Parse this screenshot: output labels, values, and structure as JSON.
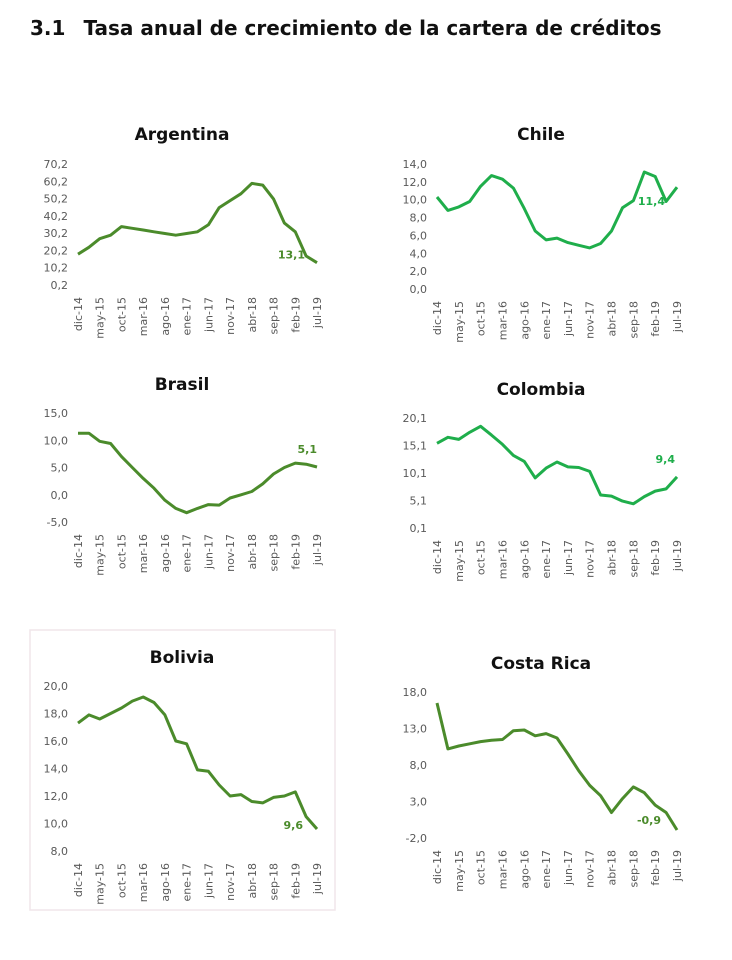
{
  "heading": {
    "number": "3.1",
    "text": "Tasa anual de crecimiento de la cartera de créditos"
  },
  "chart_data": [
    {
      "type": "line",
      "title": "Argentina",
      "color": "#4b8b2b",
      "grid": false,
      "categories": [
        "dic-14",
        null,
        "may-15",
        null,
        "oct-15",
        null,
        "mar-16",
        null,
        "ago-16",
        null,
        "ene-17",
        null,
        "jun-17",
        null,
        "nov-17",
        null,
        "abr-18",
        null,
        "sep-18",
        null,
        "feb-19",
        null,
        "jul-19"
      ],
      "values": [
        18,
        22,
        27,
        29,
        34,
        33,
        32,
        31,
        30,
        29,
        30,
        31,
        35,
        45,
        49,
        53,
        59,
        58,
        50,
        36,
        31,
        17,
        13.1
      ],
      "value_labels": [
        null,
        null,
        null,
        null,
        null,
        null,
        null,
        null,
        null,
        null,
        null,
        null,
        null,
        null,
        null,
        null,
        null,
        null,
        null,
        null,
        null,
        null,
        "13,1"
      ],
      "ylim": [
        0.2,
        70.2
      ],
      "yticks": [
        {
          "value": 0.2,
          "label": "0,2"
        },
        {
          "value": 10.2,
          "label": "10,2"
        },
        {
          "value": 20.2,
          "label": "20,2"
        },
        {
          "value": 30.2,
          "label": "30,2"
        },
        {
          "value": 40.2,
          "label": "40,2"
        },
        {
          "value": 50.2,
          "label": "50,2"
        },
        {
          "value": 60.2,
          "label": "60,2"
        },
        {
          "value": 70.2,
          "label": "70,2"
        }
      ]
    },
    {
      "type": "line",
      "title": "Chile",
      "color": "#1fae4b",
      "grid": false,
      "categories": [
        "dic-14",
        null,
        "may-15",
        null,
        "oct-15",
        null,
        "mar-16",
        null,
        "ago-16",
        null,
        "ene-17",
        null,
        "jun-17",
        null,
        "nov-17",
        null,
        "abr-18",
        null,
        "sep-18",
        null,
        "feb-19",
        null,
        "jul-19"
      ],
      "values": [
        10.3,
        8.8,
        9.2,
        9.8,
        11.5,
        12.7,
        12.3,
        11.3,
        9.0,
        6.5,
        5.5,
        5.7,
        5.2,
        4.9,
        4.6,
        5.1,
        6.5,
        9.1,
        9.9,
        13.1,
        12.6,
        9.8,
        11.4
      ],
      "value_labels": [
        null,
        null,
        null,
        null,
        null,
        null,
        null,
        null,
        null,
        null,
        null,
        null,
        null,
        null,
        null,
        null,
        null,
        null,
        null,
        null,
        null,
        null,
        "11,4"
      ],
      "ylim": [
        0,
        14
      ],
      "yticks": [
        {
          "value": 0,
          "label": "0,0"
        },
        {
          "value": 2,
          "label": "2,0"
        },
        {
          "value": 4,
          "label": "4,0"
        },
        {
          "value": 6,
          "label": "6,0"
        },
        {
          "value": 8,
          "label": "8,0"
        },
        {
          "value": 10,
          "label": "10,0"
        },
        {
          "value": 12,
          "label": "12,0"
        },
        {
          "value": 14,
          "label": "14,0"
        }
      ]
    },
    {
      "type": "line",
      "title": "Brasil",
      "color": "#4b8b2b",
      "grid": false,
      "categories": [
        "dic-14",
        null,
        "may-15",
        null,
        "oct-15",
        null,
        "mar-16",
        null,
        "ago-16",
        null,
        "ene-17",
        null,
        "jun-17",
        null,
        "nov-17",
        null,
        "abr-18",
        null,
        "sep-18",
        null,
        "feb-19",
        null,
        "jul-19"
      ],
      "values": [
        11.3,
        11.3,
        9.8,
        9.4,
        7.0,
        5.0,
        3.0,
        1.2,
        -1.0,
        -2.5,
        -3.3,
        -2.5,
        -1.8,
        -1.9,
        -0.6,
        0.0,
        0.6,
        2.0,
        3.8,
        5.0,
        5.8,
        5.6,
        5.1
      ],
      "value_labels": [
        null,
        null,
        null,
        null,
        null,
        null,
        null,
        null,
        null,
        null,
        null,
        null,
        null,
        null,
        null,
        null,
        null,
        null,
        null,
        null,
        null,
        null,
        "5,1"
      ],
      "ylim": [
        -5,
        15
      ],
      "yticks": [
        {
          "value": -5,
          "label": "-5,0"
        },
        {
          "value": 0,
          "label": "0,0"
        },
        {
          "value": 5,
          "label": "5,0"
        },
        {
          "value": 10,
          "label": "10,0"
        },
        {
          "value": 15,
          "label": "15,0"
        }
      ]
    },
    {
      "type": "line",
      "title": "Colombia",
      "color": "#1fae4b",
      "grid": false,
      "categories": [
        "dic-14",
        null,
        "may-15",
        null,
        "oct-15",
        null,
        "mar-16",
        null,
        "ago-16",
        null,
        "ene-17",
        null,
        "jun-17",
        null,
        "nov-17",
        null,
        "abr-18",
        null,
        "sep-18",
        null,
        "feb-19",
        null,
        "jul-19"
      ],
      "values": [
        15.5,
        16.6,
        16.2,
        17.5,
        18.6,
        17.0,
        15.3,
        13.3,
        12.2,
        9.2,
        11.0,
        12.1,
        11.2,
        11.1,
        10.4,
        6.1,
        5.9,
        5.0,
        4.5,
        5.8,
        6.8,
        7.2,
        9.4
      ],
      "value_labels": [
        null,
        null,
        null,
        null,
        null,
        null,
        null,
        null,
        null,
        null,
        null,
        null,
        null,
        null,
        null,
        null,
        null,
        null,
        null,
        null,
        null,
        null,
        "9,4"
      ],
      "ylim": [
        0.1,
        20.1
      ],
      "yticks": [
        {
          "value": 0.1,
          "label": "0,1"
        },
        {
          "value": 5.1,
          "label": "5,1"
        },
        {
          "value": 10.1,
          "label": "10,1"
        },
        {
          "value": 15.1,
          "label": "15,1"
        },
        {
          "value": 20.1,
          "label": "20,1"
        }
      ]
    },
    {
      "type": "line",
      "title": "Bolivia",
      "color": "#4b8b2b",
      "grid": false,
      "categories": [
        "dic-14",
        null,
        "may-15",
        null,
        "oct-15",
        null,
        "mar-16",
        null,
        "ago-16",
        null,
        "ene-17",
        null,
        "jun-17",
        null,
        "nov-17",
        null,
        "abr-18",
        null,
        "sep-18",
        null,
        "feb-19",
        null,
        "jul-19"
      ],
      "values": [
        17.3,
        17.9,
        17.6,
        18.0,
        18.4,
        18.9,
        19.2,
        18.8,
        17.9,
        16.0,
        15.8,
        13.9,
        13.8,
        12.8,
        12.0,
        12.1,
        11.6,
        11.5,
        11.9,
        12.0,
        12.3,
        10.5,
        9.6
      ],
      "value_labels": [
        null,
        null,
        null,
        null,
        null,
        null,
        null,
        null,
        null,
        null,
        null,
        null,
        null,
        null,
        null,
        null,
        null,
        null,
        null,
        null,
        null,
        null,
        "9,6"
      ],
      "ylim": [
        8,
        20
      ],
      "yticks": [
        {
          "value": 8,
          "label": "8,0"
        },
        {
          "value": 10,
          "label": "10,0"
        },
        {
          "value": 12,
          "label": "12,0"
        },
        {
          "value": 14,
          "label": "14,0"
        },
        {
          "value": 16,
          "label": "16,0"
        },
        {
          "value": 18,
          "label": "18,0"
        },
        {
          "value": 20,
          "label": "20,0"
        }
      ]
    },
    {
      "type": "line",
      "title": "Costa Rica",
      "color": "#4b8b2b",
      "grid": false,
      "categories": [
        "dic-14",
        null,
        "may-15",
        null,
        "oct-15",
        null,
        "mar-16",
        null,
        "ago-16",
        null,
        "ene-17",
        null,
        "jun-17",
        null,
        "nov-17",
        null,
        "abr-18",
        null,
        "sep-18",
        null,
        "feb-19",
        null,
        "jul-19"
      ],
      "values": [
        16.5,
        10.2,
        10.6,
        10.9,
        11.2,
        11.4,
        11.5,
        12.7,
        12.8,
        12.0,
        12.3,
        11.7,
        9.5,
        7.2,
        5.2,
        3.8,
        1.5,
        3.4,
        5.0,
        4.2,
        2.5,
        1.5,
        -0.9
      ],
      "value_labels": [
        null,
        null,
        null,
        null,
        null,
        null,
        null,
        null,
        null,
        null,
        null,
        null,
        null,
        null,
        null,
        null,
        null,
        null,
        null,
        null,
        null,
        null,
        "-0,9"
      ],
      "ylim": [
        -2,
        18
      ],
      "yticks": [
        {
          "value": -2,
          "label": "-2,0"
        },
        {
          "value": 3,
          "label": "3,0"
        },
        {
          "value": 8,
          "label": "8,0"
        },
        {
          "value": 13,
          "label": "13,0"
        },
        {
          "value": 18,
          "label": "18,0"
        }
      ]
    }
  ]
}
